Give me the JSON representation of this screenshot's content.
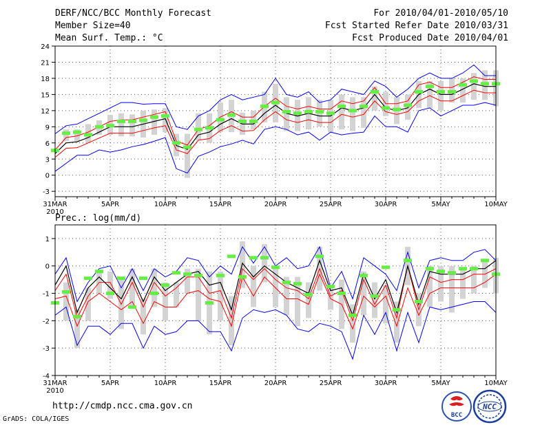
{
  "header": {
    "title": "DERF/NCC/BCC Monthly Forecast",
    "member_size": "Member Size=40",
    "variable_top": "Mean Surf. Temp.: °C",
    "forecast_period": "For 2010/04/01-2010/05/10",
    "fcst_started": "Fcst Started Refer Date 2010/03/31",
    "fcst_produced": "Fcst Produced Date 2010/04/01"
  },
  "footer": {
    "url": "http://cmdp.ncc.cma.gov.cn",
    "grads": "GrADS: COLA/IGES",
    "logo_bcc": "BCC",
    "logo_ncc": "NCC"
  },
  "colors": {
    "envelope": "#0000ff",
    "spread": "#ff0000",
    "mean": "#000000",
    "box": "#d3d3d3",
    "marker": "#66ee44"
  },
  "chart_data": [
    {
      "type": "line",
      "title": "Mean Surf. Temp.: °C",
      "xlabel": "",
      "ylabel": "°C",
      "x_ticks": [
        "31MAR",
        "5APR",
        "10APR",
        "15APR",
        "20APR",
        "25APR",
        "30APR",
        "5MAY",
        "10MAY"
      ],
      "x_tick_days": [
        0,
        5,
        10,
        15,
        20,
        25,
        30,
        35,
        40
      ],
      "year_label": "2010",
      "ylim": [
        -4,
        24
      ],
      "y_ticks": [
        -3,
        0,
        3,
        6,
        9,
        12,
        15,
        18,
        21,
        24
      ],
      "grid": true,
      "x": [
        0,
        1,
        2,
        3,
        4,
        5,
        6,
        7,
        8,
        9,
        10,
        11,
        12,
        13,
        14,
        15,
        16,
        17,
        18,
        19,
        20,
        21,
        22,
        23,
        24,
        25,
        26,
        27,
        28,
        29,
        30,
        31,
        32,
        33,
        34,
        35,
        36,
        37,
        38,
        39,
        40
      ],
      "series": [
        {
          "name": "upper envelope",
          "color": "blue",
          "values": [
            7.7,
            9.2,
            9.5,
            10.5,
            11.5,
            12.5,
            13.5,
            13.5,
            13.2,
            13.3,
            13.3,
            9.0,
            8.5,
            11.0,
            12.0,
            14.0,
            15.0,
            14.0,
            14.5,
            15.0,
            18.0,
            15.0,
            14.5,
            15.5,
            13.5,
            14.0,
            16.0,
            15.5,
            15.0,
            17.5,
            16.5,
            14.5,
            16.0,
            18.0,
            19.0,
            18.0,
            18.0,
            19.0,
            20.5,
            18.5,
            18.5
          ]
        },
        {
          "name": "upper spread",
          "color": "red",
          "values": [
            4.7,
            7.0,
            7.3,
            8.0,
            9.0,
            10.0,
            10.3,
            10.3,
            10.8,
            11.3,
            11.8,
            6.3,
            5.6,
            8.5,
            9.2,
            10.8,
            11.8,
            10.8,
            10.8,
            12.8,
            14.3,
            12.8,
            12.3,
            12.8,
            12.3,
            12.3,
            13.8,
            13.3,
            13.8,
            16.3,
            13.3,
            13.3,
            13.8,
            16.8,
            17.3,
            16.3,
            16.3,
            17.3,
            18.3,
            17.8,
            17.8
          ]
        },
        {
          "name": "ensemble mean",
          "color": "black",
          "values": [
            4.0,
            6.0,
            6.2,
            7.0,
            8.0,
            9.0,
            9.0,
            9.0,
            9.5,
            10.0,
            10.5,
            5.5,
            4.8,
            7.5,
            8.0,
            9.5,
            10.5,
            9.5,
            9.5,
            11.5,
            13.0,
            11.5,
            11.0,
            11.5,
            11.0,
            11.0,
            12.5,
            12.0,
            12.5,
            15.0,
            12.5,
            12.0,
            12.5,
            15.0,
            16.0,
            15.0,
            15.0,
            16.0,
            17.0,
            16.5,
            16.5
          ]
        },
        {
          "name": "lower spread",
          "color": "red",
          "values": [
            3.3,
            5.0,
            5.1,
            6.0,
            6.9,
            7.8,
            7.8,
            7.8,
            8.3,
            8.8,
            9.2,
            4.7,
            4.0,
            6.5,
            6.8,
            8.3,
            9.2,
            8.2,
            8.3,
            10.3,
            11.8,
            10.3,
            9.8,
            10.3,
            9.8,
            9.8,
            11.3,
            10.8,
            11.3,
            13.8,
            11.8,
            11.3,
            11.8,
            13.8,
            14.8,
            13.8,
            13.8,
            14.8,
            15.8,
            15.3,
            15.3
          ]
        },
        {
          "name": "lower envelope",
          "color": "blue",
          "values": [
            0.7,
            2.2,
            3.7,
            3.7,
            4.7,
            4.3,
            4.7,
            5.3,
            5.7,
            6.3,
            7.0,
            1.2,
            0.4,
            3.5,
            4.3,
            5.3,
            5.8,
            6.5,
            5.8,
            8.5,
            9.0,
            8.5,
            7.5,
            8.0,
            6.5,
            8.0,
            7.5,
            7.8,
            8.0,
            11.0,
            9.0,
            9.0,
            8.0,
            12.0,
            12.5,
            11.0,
            12.0,
            13.0,
            13.0,
            13.5,
            13.0
          ]
        }
      ],
      "boxes": {
        "days": [
          1,
          2,
          3,
          4,
          5,
          6,
          7,
          8,
          9,
          10,
          11,
          12,
          13,
          14,
          15,
          16,
          17,
          18,
          19,
          20,
          21,
          22,
          23,
          24,
          25,
          26,
          27,
          28,
          29,
          30,
          31,
          32,
          33,
          34,
          35,
          36,
          37,
          38,
          39,
          40
        ],
        "high": [
          8.5,
          8.5,
          9.5,
          10.2,
          11.2,
          11.5,
          11.3,
          12.0,
          12.2,
          12.5,
          7.7,
          7.7,
          11.5,
          11.5,
          13.5,
          14.0,
          11.6,
          12.0,
          15.5,
          17.0,
          14.5,
          14.0,
          14.5,
          14.0,
          14.0,
          15.0,
          14.5,
          14.5,
          16.5,
          15.5,
          14.5,
          15.0,
          17.5,
          17.5,
          17.5,
          18.0,
          18.0,
          19.0,
          19.5,
          19.5
        ],
        "low": [
          6.3,
          6.3,
          6.0,
          7.5,
          7.5,
          7.2,
          7.2,
          7.0,
          7.5,
          8.0,
          3.5,
          -0.5,
          6.5,
          6.0,
          8.0,
          8.0,
          7.5,
          8.5,
          9.8,
          9.8,
          8.2,
          8.2,
          8.5,
          9.0,
          8.0,
          8.5,
          8.2,
          8.8,
          12.0,
          11.0,
          9.5,
          10.3,
          12.5,
          12.5,
          12.0,
          13.5,
          13.5,
          14.0,
          14.0,
          12.8
        ],
        "marker": [
          7.8,
          8.0,
          7.5,
          9.0,
          9.2,
          10.0,
          10.0,
          10.2,
          10.8,
          11.0,
          6.0,
          5.2,
          8.5,
          8.8,
          10.3,
          11.2,
          10.0,
          10.0,
          12.8,
          13.5,
          11.8,
          11.5,
          11.8,
          11.8,
          11.5,
          12.8,
          12.0,
          12.8,
          15.5,
          12.5,
          12.2,
          13.0,
          15.5,
          16.5,
          15.5,
          15.5,
          16.8,
          17.5,
          17.0,
          17.0
        ],
        "first_marker": 4.6
      }
    },
    {
      "type": "line",
      "title": "Prec.: log(mm/d)",
      "xlabel": "",
      "ylabel": "log(mm/d)",
      "x_ticks": [
        "31MAR",
        "5APR",
        "10APR",
        "15APR",
        "20APR",
        "25APR",
        "30APR",
        "5MAY",
        "10MAY"
      ],
      "x_tick_days": [
        0,
        5,
        10,
        15,
        20,
        25,
        30,
        35,
        40
      ],
      "year_label": "2010",
      "ylim": [
        -4,
        1.5
      ],
      "y_ticks": [
        -4,
        -3,
        -2,
        -1,
        0,
        1
      ],
      "grid": true,
      "x": [
        0,
        1,
        2,
        3,
        4,
        5,
        6,
        7,
        8,
        9,
        10,
        11,
        12,
        13,
        14,
        15,
        16,
        17,
        18,
        19,
        20,
        21,
        22,
        23,
        24,
        25,
        26,
        27,
        28,
        29,
        30,
        31,
        32,
        33,
        34,
        35,
        36,
        37,
        38,
        39,
        40
      ],
      "series": [
        {
          "name": "upper envelope",
          "color": "blue",
          "values": [
            -0.3,
            0.3,
            -1.3,
            -0.6,
            -0.1,
            0.0,
            -0.8,
            -0.1,
            -0.9,
            -0.1,
            -0.4,
            -0.2,
            0.3,
            0.2,
            -0.4,
            0.0,
            -0.3,
            0.7,
            0.1,
            0.7,
            0.0,
            0.3,
            -0.1,
            0.0,
            0.7,
            -0.8,
            -0.2,
            -1.2,
            0.3,
            0.0,
            -0.3,
            -0.9,
            0.5,
            -0.8,
            0.2,
            0.3,
            0.2,
            0.2,
            0.5,
            0.6,
            0.2
          ]
        },
        {
          "name": "upper spread",
          "color": "red",
          "values": [
            -0.9,
            -0.3,
            -1.9,
            -1.1,
            -0.6,
            -0.6,
            -1.4,
            -0.6,
            -1.5,
            -0.6,
            -1.1,
            -0.8,
            -0.4,
            -0.4,
            -1.0,
            -0.9,
            -1.9,
            -0.1,
            -0.5,
            -0.1,
            -0.5,
            -0.8,
            -0.9,
            -1.2,
            -0.1,
            -1.1,
            -0.9,
            -2.0,
            -0.5,
            -1.4,
            -0.7,
            -1.9,
            0.0,
            -1.6,
            -0.4,
            -0.6,
            -0.5,
            -0.5,
            -0.3,
            -0.3,
            -0.1
          ]
        },
        {
          "name": "ensemble mean",
          "color": "black",
          "values": [
            -0.7,
            0.0,
            -1.7,
            -0.8,
            -0.4,
            -0.8,
            -1.2,
            -0.4,
            -1.3,
            -0.4,
            -0.9,
            -0.6,
            -0.3,
            -0.2,
            -0.7,
            -0.6,
            -1.6,
            0.1,
            -0.4,
            0.0,
            -0.3,
            -0.6,
            -0.8,
            -1.0,
            0.2,
            -0.9,
            -0.8,
            -1.8,
            -0.3,
            -1.2,
            -0.5,
            -1.7,
            0.0,
            -1.4,
            -0.2,
            -0.3,
            -0.3,
            -0.3,
            -0.1,
            -0.1,
            0.2
          ]
        },
        {
          "name": "lower spread",
          "color": "red",
          "values": [
            -1.2,
            -1.1,
            -2.2,
            -1.3,
            -1.0,
            -1.3,
            -1.6,
            -1.3,
            -2.1,
            -1.3,
            -1.5,
            -1.5,
            -1.0,
            -0.9,
            -1.2,
            -1.3,
            -2.2,
            -0.4,
            -1.1,
            -0.4,
            -0.8,
            -1.2,
            -1.2,
            -1.4,
            -0.3,
            -1.2,
            -1.4,
            -2.3,
            -1.1,
            -1.5,
            -1.1,
            -2.2,
            -0.8,
            -1.8,
            -1.0,
            -0.8,
            -0.8,
            -0.8,
            -0.8,
            -0.6,
            -0.3
          ]
        },
        {
          "name": "lower envelope",
          "color": "blue",
          "values": [
            -1.8,
            -1.5,
            -2.9,
            -2.2,
            -2.2,
            -2.5,
            -2.1,
            -2.1,
            -3.0,
            -2.2,
            -2.5,
            -2.4,
            -2.0,
            -2.0,
            -2.4,
            -2.4,
            -3.1,
            -1.9,
            -1.6,
            -1.7,
            -1.6,
            -1.8,
            -2.3,
            -2.4,
            -2.1,
            -2.2,
            -2.4,
            -3.4,
            -1.8,
            -2.5,
            -1.7,
            -3.1,
            -1.7,
            -2.8,
            -1.5,
            -1.6,
            -1.5,
            -1.4,
            -1.3,
            -1.3,
            -1.7
          ]
        }
      ],
      "boxes": {
        "days": [
          1,
          2,
          3,
          4,
          5,
          6,
          7,
          8,
          9,
          10,
          11,
          12,
          13,
          14,
          15,
          16,
          17,
          18,
          19,
          20,
          21,
          22,
          23,
          24,
          25,
          26,
          27,
          28,
          29,
          30,
          31,
          32,
          33,
          34,
          35,
          36,
          37,
          38,
          39,
          40
        ],
        "high": [
          -0.6,
          -1.6,
          -0.8,
          -0.2,
          -0.2,
          -0.5,
          -0.1,
          -1.2,
          -0.1,
          -0.6,
          -0.6,
          -0.1,
          -0.1,
          -0.2,
          -0.2,
          -1.1,
          0.9,
          0.0,
          0.8,
          0.0,
          -0.4,
          -0.4,
          -0.6,
          0.7,
          -0.7,
          -0.5,
          -1.4,
          -0.2,
          -0.6,
          -0.7,
          -1.3,
          0.7,
          -1.0,
          0.0,
          0.0,
          0.0,
          -0.1,
          0.0,
          0.2,
          0.3
        ],
        "low": [
          -2.0,
          -3.0,
          -2.0,
          -1.0,
          -1.2,
          -2.3,
          -1.5,
          -2.5,
          -1.5,
          -2.0,
          -1.5,
          -1.0,
          -2.0,
          -2.5,
          -2.0,
          -2.9,
          -0.8,
          -1.5,
          -0.6,
          -1.5,
          -1.8,
          -2.2,
          -1.9,
          -0.9,
          -1.6,
          -2.3,
          -2.8,
          -1.8,
          -1.9,
          -2.1,
          -2.8,
          -0.7,
          -2.2,
          -1.5,
          -1.3,
          -1.7,
          -1.2,
          -1.0,
          -0.8,
          -1.0
        ],
        "marker": [
          -0.95,
          -1.85,
          -0.45,
          -0.2,
          -1.0,
          -0.45,
          -1.5,
          -0.45,
          -1.0,
          -0.7,
          -0.25,
          -0.3,
          -0.35,
          -1.35,
          -0.35,
          0.35,
          -0.4,
          0.3,
          0.3,
          -0.05,
          -0.6,
          -0.65,
          -1.05,
          0.35,
          -0.75,
          -1.0,
          -1.8,
          -0.35,
          -1.1,
          -0.05,
          -1.6,
          0.2,
          -1.3,
          -0.1,
          -0.2,
          -0.25,
          -0.1,
          -0.1,
          0.2,
          -0.3
        ],
        "first_marker": -1.35
      }
    }
  ]
}
